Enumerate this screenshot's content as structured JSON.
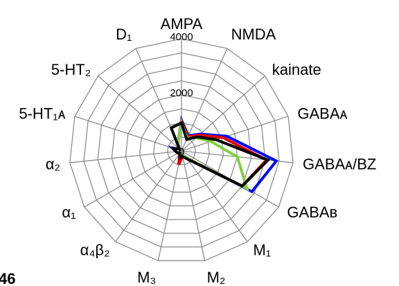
{
  "chart_data": {
    "type": "radar",
    "panel_label": "46",
    "axes": [
      "AMPA",
      "NMDA",
      "kainate",
      "GABAᴀ",
      "GABAᴀ/BZ",
      "GABAʙ",
      "M₁",
      "M₂",
      "M₃",
      "α₄β₂",
      "α₁",
      "α₂",
      "5-HT₁ᴀ",
      "5-HT₂",
      "D₁"
    ],
    "rlim": [
      0,
      4000
    ],
    "ticks": [
      0,
      2000,
      4000
    ],
    "tick_labels": [
      "0",
      "2000",
      "4000"
    ],
    "grid": true,
    "series": [
      {
        "color": "#0000ff",
        "values": [
          1100,
          600,
          900,
          1700,
          3400,
          2900,
          300,
          150,
          150,
          100,
          150,
          200,
          350,
          100,
          300
        ]
      },
      {
        "color": "#e00000",
        "values": [
          1050,
          550,
          850,
          1550,
          3050,
          2500,
          350,
          200,
          500,
          100,
          150,
          200,
          300,
          100,
          300
        ]
      },
      {
        "color": "#80d040",
        "values": [
          1000,
          500,
          700,
          1100,
          2000,
          2700,
          300,
          150,
          150,
          100,
          150,
          200,
          300,
          100,
          300
        ]
      },
      {
        "color": "#000000",
        "values": [
          1000,
          450,
          750,
          1300,
          3100,
          2500,
          350,
          200,
          250,
          100,
          150,
          200,
          300,
          100,
          900
        ]
      }
    ]
  }
}
